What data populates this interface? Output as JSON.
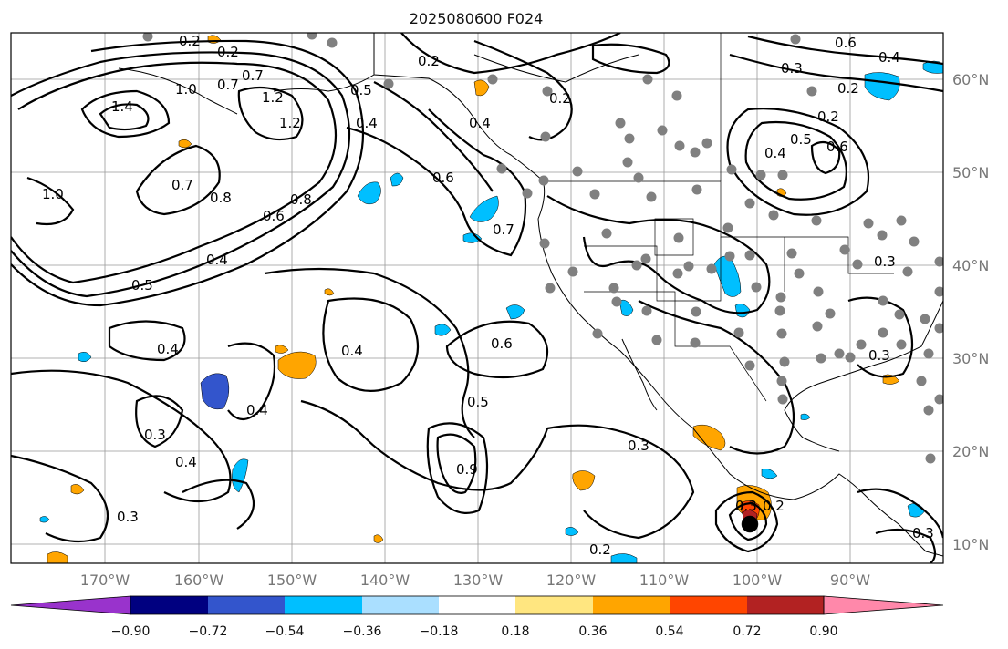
{
  "title": "2025080600 F024",
  "lon_labels": [
    "170°W",
    "160°W",
    "150°W",
    "140°W",
    "130°W",
    "120°W",
    "110°W",
    "100°W",
    "90°W"
  ],
  "lat_labels": [
    "60°N",
    "50°N",
    "40°N",
    "30°N",
    "20°N",
    "10°N"
  ],
  "colorbar": {
    "colors": [
      "#9933cc",
      "#000080",
      "#3355cc",
      "#00bfff",
      "#aadfff",
      "#ffffff",
      "#ffe680",
      "#ffa500",
      "#ff4500",
      "#b22222",
      "#ff88aa"
    ],
    "ticks": [
      "−0.90",
      "−0.72",
      "−0.54",
      "−0.36",
      "−0.18",
      "0.18",
      "0.36",
      "0.54",
      "0.72",
      "0.90"
    ]
  },
  "contour_labels": [
    "0.2",
    "0.2",
    "0.6",
    "0.4",
    "0.3",
    "0.2",
    "0.2",
    "0.2",
    "1.4",
    "1.2",
    "1.0",
    "0.7",
    "0.7",
    "1.2",
    "0.5",
    "0.4",
    "0.4",
    "0.5",
    "0.6",
    "0.4",
    "0.6",
    "0.2",
    "1.0",
    "0.7",
    "0.8",
    "0.8",
    "0.6",
    "0.7",
    "0.4",
    "0.5",
    "0.4",
    "0.4",
    "0.6",
    "0.5",
    "0.3",
    "0.4",
    "0.3",
    "0.4",
    "0.3",
    "0.9",
    "0.3",
    "0.3",
    "0.2",
    "0.3",
    "0.3",
    "0.2"
  ],
  "colors": {
    "contour": "#000000",
    "station": "#808080",
    "grid": "#999999",
    "frame": "#000000"
  }
}
